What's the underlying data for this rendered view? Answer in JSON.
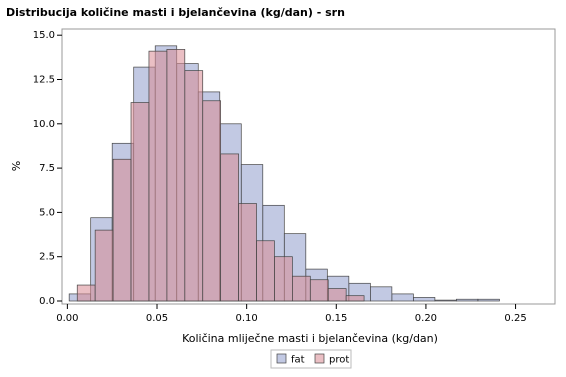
{
  "chart_data": {
    "type": "histogram",
    "title": "Distribucija količine masti i bjelančevina (kg/dan) - srn",
    "x_label": "Količina mliječne masti i bjelančevina (kg/dan)",
    "y_label": "%",
    "xlim": [
      -0.003,
      0.272
    ],
    "ylim": [
      0,
      15.35
    ],
    "xticks": [
      {
        "value": 0,
        "label": "0.00"
      },
      {
        "value": 0.05,
        "label": "0.05"
      },
      {
        "value": 0.1,
        "label": "0.10"
      },
      {
        "value": 0.15,
        "label": "0.15"
      },
      {
        "value": 0.2,
        "label": "0.20"
      },
      {
        "value": 0.25,
        "label": "0.25"
      }
    ],
    "yticks": [
      {
        "value": 0,
        "label": "0.0"
      },
      {
        "value": 2.5,
        "label": "2.5"
      },
      {
        "value": 5,
        "label": "5.0"
      },
      {
        "value": 7.5,
        "label": "7.5"
      },
      {
        "value": 10,
        "label": "10.0"
      },
      {
        "value": 12.5,
        "label": "12.5"
      },
      {
        "value": 15,
        "label": "15.0"
      }
    ],
    "series": [
      {
        "name": "fat",
        "color": "#8f9ccc",
        "bins": [
          0.001,
          0.013,
          0.025,
          0.037,
          0.049,
          0.061,
          0.073,
          0.085,
          0.097,
          0.109,
          0.121,
          0.133,
          0.145,
          0.157,
          0.169,
          0.181,
          0.193,
          0.205,
          0.217,
          0.229,
          0.241
        ],
        "values": [
          0.4,
          4.7,
          8.9,
          13.2,
          14.4,
          13.4,
          11.8,
          10.0,
          7.7,
          5.4,
          3.8,
          1.8,
          1.4,
          1.0,
          0.8,
          0.4,
          0.2,
          0.05,
          0.1,
          0.1
        ]
      },
      {
        "name": "prot",
        "color": "#d98a94",
        "bins": [
          0.0055,
          0.0155,
          0.0255,
          0.0355,
          0.0455,
          0.0555,
          0.0655,
          0.0755,
          0.0855,
          0.0955,
          0.1055,
          0.1155,
          0.1255,
          0.1355,
          0.1455,
          0.1555,
          0.1655
        ],
        "values": [
          0.9,
          4.0,
          8.0,
          11.2,
          14.1,
          14.2,
          13.0,
          11.3,
          8.3,
          5.5,
          3.4,
          2.5,
          1.4,
          1.2,
          0.7,
          0.3
        ]
      }
    ]
  }
}
